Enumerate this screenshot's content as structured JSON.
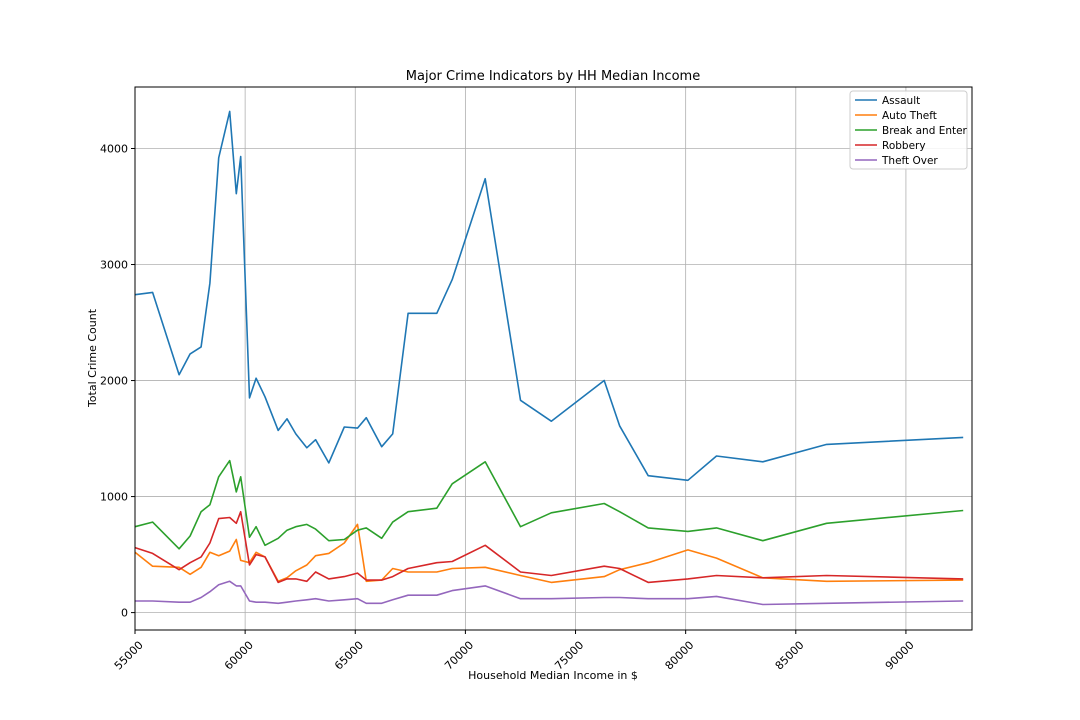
{
  "chart_data": {
    "type": "line",
    "title": "Major Crime Indicators by HH Median Income",
    "xlabel": "Household Median Income in $",
    "ylabel": "Total Crime Count",
    "xlim": [
      55000,
      93000
    ],
    "ylim": [
      -150,
      4530
    ],
    "xticks": [
      55000,
      60000,
      65000,
      70000,
      75000,
      80000,
      85000,
      90000
    ],
    "xtick_labels": [
      "55000",
      "60000",
      "65000",
      "70000",
      "75000",
      "80000",
      "85000",
      "90000"
    ],
    "yticks": [
      0,
      1000,
      2000,
      3000,
      4000
    ],
    "ytick_labels": [
      "0",
      "1000",
      "2000",
      "3000",
      "4000"
    ],
    "grid": true,
    "legend_position": "top-right",
    "x": [
      55000,
      55800,
      57000,
      57500,
      58000,
      58400,
      58800,
      59300,
      59600,
      59800,
      60200,
      60500,
      60900,
      61500,
      61900,
      62300,
      62800,
      63200,
      63800,
      64500,
      65100,
      65500,
      66200,
      66700,
      67400,
      68700,
      69400,
      70900,
      72500,
      73900,
      76300,
      77000,
      78300,
      80100,
      81400,
      83500,
      86400,
      92600
    ],
    "series": [
      {
        "name": "Assault",
        "color": "#1f77b4",
        "values": [
          2740,
          2760,
          2050,
          2230,
          2290,
          2840,
          3920,
          4320,
          3610,
          3930,
          1850,
          2020,
          1860,
          1570,
          1670,
          1540,
          1420,
          1490,
          1290,
          1600,
          1590,
          1680,
          1430,
          1540,
          2580,
          2580,
          2870,
          3740,
          1830,
          1650,
          2000,
          1610,
          1180,
          1140,
          1350,
          1300,
          1450,
          1510
        ]
      },
      {
        "name": "Auto Theft",
        "color": "#ff7f0e",
        "values": [
          520,
          400,
          390,
          330,
          390,
          520,
          490,
          530,
          630,
          450,
          430,
          520,
          480,
          270,
          300,
          360,
          410,
          490,
          510,
          600,
          760,
          270,
          280,
          380,
          350,
          350,
          380,
          390,
          320,
          260,
          310,
          370,
          430,
          540,
          470,
          300,
          270,
          280
        ]
      },
      {
        "name": "Break and Enter",
        "color": "#2ca02c",
        "values": [
          740,
          780,
          550,
          660,
          870,
          930,
          1170,
          1310,
          1040,
          1170,
          650,
          740,
          580,
          640,
          710,
          740,
          760,
          720,
          620,
          630,
          710,
          730,
          640,
          780,
          870,
          900,
          1110,
          1300,
          740,
          860,
          940,
          870,
          730,
          700,
          730,
          620,
          770,
          880
        ]
      },
      {
        "name": "Robbery",
        "color": "#d62728",
        "values": [
          560,
          510,
          370,
          430,
          480,
          600,
          810,
          820,
          770,
          870,
          410,
          500,
          480,
          260,
          290,
          290,
          270,
          350,
          290,
          310,
          340,
          280,
          280,
          310,
          380,
          430,
          440,
          580,
          350,
          320,
          400,
          380,
          260,
          290,
          320,
          300,
          320,
          290
        ]
      },
      {
        "name": "Theft Over",
        "color": "#9467bd",
        "values": [
          100,
          100,
          90,
          90,
          130,
          180,
          240,
          270,
          230,
          230,
          100,
          90,
          90,
          80,
          90,
          100,
          110,
          120,
          100,
          110,
          120,
          80,
          80,
          110,
          150,
          150,
          190,
          230,
          120,
          120,
          130,
          130,
          120,
          120,
          140,
          70,
          80,
          100
        ]
      }
    ]
  }
}
